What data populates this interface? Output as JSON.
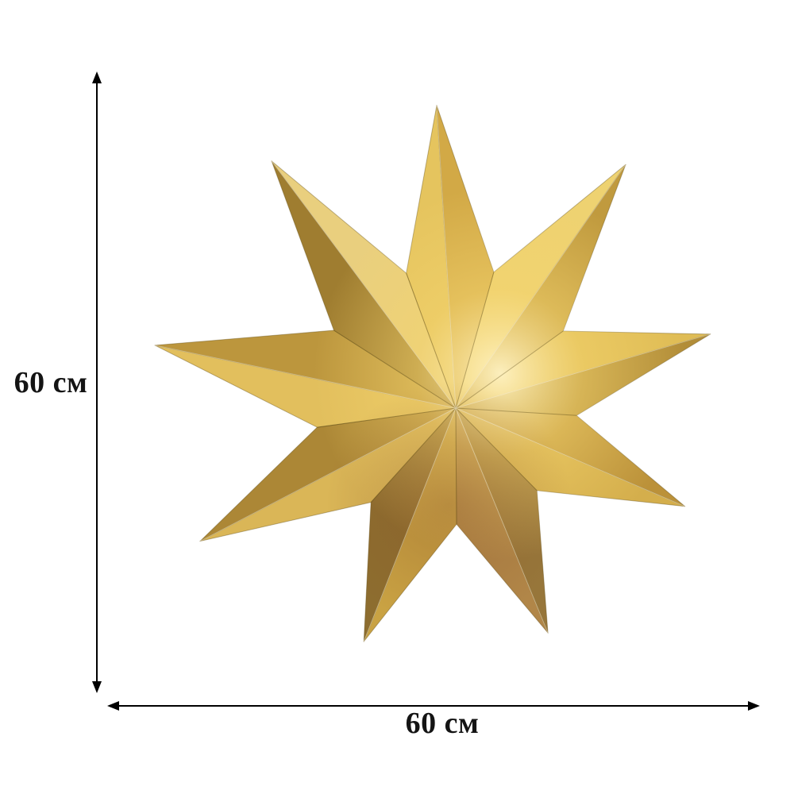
{
  "background_color": "#ffffff",
  "dimension_annotations": {
    "line_color": "#000000",
    "text_color": "#141414",
    "vertical": {
      "label": "60 см"
    },
    "horizontal": {
      "label": "60 см"
    }
  },
  "star": {
    "description": "Gold nine-pointed folded foil star",
    "point_count": 9,
    "facet_colors": [
      {
        "a": "#e5c45e",
        "b": "#d2a946"
      },
      {
        "a": "#eed271",
        "b": "#c09a3e"
      },
      {
        "a": "#dfbc55",
        "b": "#b28d38"
      },
      {
        "a": "#bb9139",
        "b": "#d4ae4c"
      },
      {
        "a": "#97763a",
        "b": "#b18648"
      },
      {
        "a": "#c9a243",
        "b": "#8d6d2f"
      },
      {
        "a": "#dab657",
        "b": "#ac8736"
      },
      {
        "a": "#e2bf5d",
        "b": "#bc963d"
      },
      {
        "a": "#9f7d30",
        "b": "#e9cf7e"
      }
    ],
    "glow_color": "#fff3c4",
    "sheen_color": "#f4d46e",
    "shadow_color": "#8b5527",
    "edge_color": "#5f4a14",
    "ridge_highlight_color": "#fff6d8"
  }
}
